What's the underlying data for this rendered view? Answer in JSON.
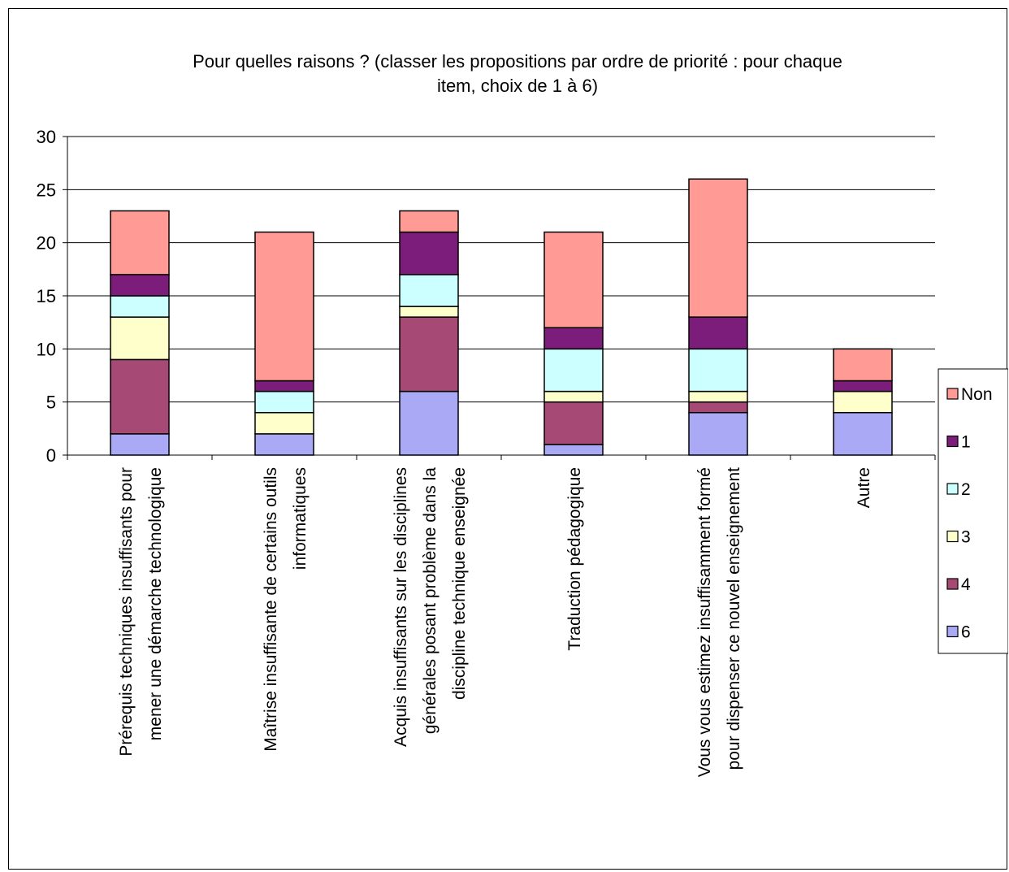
{
  "chart_data": {
    "type": "bar",
    "stacked": true,
    "title_lines": [
      "Pour quelles raisons ? (classer les propositions par ordre de priorité : pour chaque",
      "item, choix de 1 à 6)"
    ],
    "categories": [
      [
        "Prérequis techniques insuffisants pour",
        "mener une démarche technologique"
      ],
      [
        "Maîtrise insuffisante de certains outils",
        "informatiques"
      ],
      [
        "Acquis insuffisants sur les disciplines",
        "générales posant problème dans la",
        "discipline technique enseignée"
      ],
      [
        "Traduction pédagogique"
      ],
      [
        "Vous vous estimez insuffisamment formé",
        "pour dispenser ce nouvel enseignement"
      ],
      [
        "Autre"
      ]
    ],
    "series": [
      {
        "name": "6",
        "color": "#a9a9f5",
        "values": [
          2,
          2,
          6,
          1,
          4,
          4
        ]
      },
      {
        "name": "4",
        "color": "#a64a75",
        "values": [
          7,
          0,
          7,
          4,
          1,
          0
        ]
      },
      {
        "name": "3",
        "color": "#ffffcc",
        "values": [
          4,
          2,
          1,
          1,
          1,
          2
        ]
      },
      {
        "name": "2",
        "color": "#ccffff",
        "values": [
          2,
          2,
          3,
          4,
          4,
          0
        ]
      },
      {
        "name": "1",
        "color": "#7d1d7b",
        "values": [
          2,
          1,
          4,
          2,
          3,
          1
        ]
      },
      {
        "name": "Non",
        "color": "#ff9a94",
        "values": [
          6,
          14,
          2,
          9,
          13,
          3
        ]
      }
    ],
    "legend_order": [
      "Non",
      "1",
      "2",
      "3",
      "4",
      "6"
    ],
    "ylim": [
      0,
      30
    ],
    "yticks": [
      0,
      5,
      10,
      15,
      20,
      25,
      30
    ],
    "grid": true,
    "legend_position": "right"
  }
}
